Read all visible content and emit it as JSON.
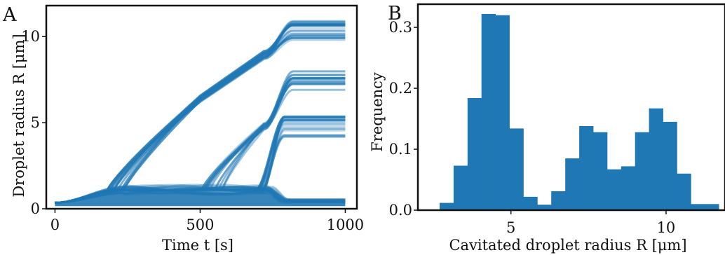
{
  "panels": {
    "a": {
      "letter": "A"
    },
    "b": {
      "letter": "B"
    }
  },
  "chart_data": [
    {
      "type": "line",
      "panel": "A",
      "xlabel": "Time t [s]",
      "ylabel": "Droplet radius R [μm]",
      "xlim": [
        -30,
        1040
      ],
      "ylim": [
        0,
        11.8
      ],
      "xticks": [
        0,
        500,
        1000
      ],
      "yticks": [
        0,
        5,
        10
      ],
      "xtick_labels": [
        "0",
        "500",
        "1000"
      ],
      "ytick_labels": [
        "0",
        "5",
        "10"
      ],
      "color": "#1f77b4",
      "groups": [
        {
          "count": 14,
          "nucleation_s": [
            180,
            240
          ],
          "mid": [
            6.2,
            6.6
          ],
          "mid_t": 500,
          "knee_t": 720,
          "knee": [
            8.7,
            9.2
          ],
          "final": [
            9.7,
            11.0
          ],
          "final_t": 790
        },
        {
          "count": 12,
          "nucleation_s": [
            500,
            580
          ],
          "mid": [
            4.6,
            5.0
          ],
          "mid_t": 720,
          "final": [
            6.9,
            8.1
          ],
          "final_t": 800
        },
        {
          "count": 16,
          "nucleation_s": [
            690,
            720
          ],
          "final": [
            4.1,
            5.5
          ],
          "final_t": 780
        }
      ],
      "baseline": {
        "start": 0.35,
        "plateau": [
          0.9,
          1.3
        ],
        "plateau_t": 240,
        "end_t": 720,
        "final": [
          0.35,
          0.55
        ]
      }
    },
    {
      "type": "bar",
      "panel": "B",
      "xlabel": "Cavitated droplet radius R [μm]",
      "ylabel": "Frequency",
      "xlim": [
        2.0,
        11.9
      ],
      "ylim": [
        0,
        0.338
      ],
      "xticks": [
        5,
        10
      ],
      "yticks": [
        0.0,
        0.1,
        0.2,
        0.3
      ],
      "xtick_labels": [
        "5",
        "10"
      ],
      "ytick_labels": [
        "0.0",
        "0.1",
        "0.2",
        "0.3"
      ],
      "color": "#1f77b4",
      "bin_edges": [
        2.7,
        3.15,
        3.6,
        4.05,
        4.5,
        4.95,
        5.4,
        5.85,
        6.3,
        6.75,
        7.2,
        7.65,
        8.1,
        8.55,
        9.0,
        9.45,
        9.9,
        10.35,
        10.8,
        11.25,
        11.7
      ],
      "values": [
        0.012,
        0.073,
        0.184,
        0.322,
        0.32,
        0.134,
        0.022,
        0.009,
        0.031,
        0.085,
        0.138,
        0.128,
        0.067,
        0.072,
        0.128,
        0.167,
        0.145,
        0.06,
        0.01,
        0.01
      ]
    }
  ]
}
